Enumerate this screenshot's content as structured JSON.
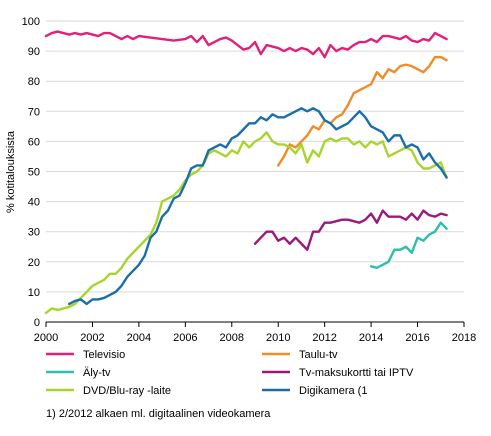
{
  "chart_data": {
    "type": "line",
    "title": "",
    "xlabel": "",
    "ylabel": "% kotitalouksista",
    "xlim": [
      2000,
      2018
    ],
    "ylim": [
      0,
      100
    ],
    "x_ticks": [
      "2000",
      "2002",
      "2004",
      "2006",
      "2008",
      "2010",
      "2012",
      "2014",
      "2016",
      "2018"
    ],
    "y_ticks": [
      "0",
      "10",
      "20",
      "30",
      "40",
      "50",
      "60",
      "70",
      "80",
      "90",
      "100"
    ],
    "grid": "horizontal",
    "legend_position": "bottom",
    "footnote": "1) 2/2012 alkaen ml. digitaalinen videokamera",
    "series": [
      {
        "name": "Televisio",
        "color": "#e0207a",
        "points": [
          [
            2000.0,
            95
          ],
          [
            2000.25,
            96
          ],
          [
            2000.5,
            96.5
          ],
          [
            2000.75,
            96
          ],
          [
            2001.0,
            95.5
          ],
          [
            2001.25,
            96
          ],
          [
            2001.5,
            95.5
          ],
          [
            2001.75,
            96
          ],
          [
            2002.0,
            95.5
          ],
          [
            2002.25,
            95
          ],
          [
            2002.5,
            96
          ],
          [
            2002.75,
            96
          ],
          [
            2003.0,
            95
          ],
          [
            2003.25,
            94
          ],
          [
            2003.5,
            95
          ],
          [
            2003.75,
            94
          ],
          [
            2004.0,
            95
          ],
          [
            2004.5,
            94.5
          ],
          [
            2005.0,
            94
          ],
          [
            2005.5,
            93.5
          ],
          [
            2006.0,
            94
          ],
          [
            2006.25,
            95
          ],
          [
            2006.5,
            93
          ],
          [
            2006.75,
            95
          ],
          [
            2007.0,
            92
          ],
          [
            2007.25,
            93
          ],
          [
            2007.5,
            94
          ],
          [
            2007.75,
            94.5
          ],
          [
            2008.0,
            93.5
          ],
          [
            2008.25,
            92
          ],
          [
            2008.5,
            90.5
          ],
          [
            2008.75,
            91
          ],
          [
            2009.0,
            93
          ],
          [
            2009.25,
            89
          ],
          [
            2009.5,
            92
          ],
          [
            2009.75,
            91.5
          ],
          [
            2010.0,
            91
          ],
          [
            2010.25,
            90
          ],
          [
            2010.5,
            91
          ],
          [
            2010.75,
            90
          ],
          [
            2011.0,
            91
          ],
          [
            2011.25,
            90.5
          ],
          [
            2011.5,
            89
          ],
          [
            2011.75,
            91
          ],
          [
            2012.0,
            88
          ],
          [
            2012.25,
            92
          ],
          [
            2012.5,
            90
          ],
          [
            2012.75,
            91
          ],
          [
            2013.0,
            90.5
          ],
          [
            2013.25,
            92
          ],
          [
            2013.5,
            93
          ],
          [
            2013.75,
            93
          ],
          [
            2014.0,
            94
          ],
          [
            2014.25,
            93
          ],
          [
            2014.5,
            95
          ],
          [
            2014.75,
            95
          ],
          [
            2015.0,
            94.5
          ],
          [
            2015.25,
            94
          ],
          [
            2015.5,
            95
          ],
          [
            2015.75,
            93.5
          ],
          [
            2016.0,
            93
          ],
          [
            2016.25,
            94
          ],
          [
            2016.5,
            93.5
          ],
          [
            2016.75,
            96
          ],
          [
            2017.0,
            95
          ],
          [
            2017.25,
            94
          ]
        ]
      },
      {
        "name": "Taulu-tv",
        "color": "#f08c28",
        "points": [
          [
            2010.0,
            52
          ],
          [
            2010.25,
            55
          ],
          [
            2010.5,
            59
          ],
          [
            2010.75,
            58
          ],
          [
            2011.0,
            60
          ],
          [
            2011.25,
            62
          ],
          [
            2011.5,
            65
          ],
          [
            2011.75,
            64
          ],
          [
            2012.0,
            67
          ],
          [
            2012.25,
            66
          ],
          [
            2012.5,
            68
          ],
          [
            2012.75,
            69
          ],
          [
            2013.0,
            72
          ],
          [
            2013.25,
            76
          ],
          [
            2013.5,
            77
          ],
          [
            2013.75,
            78
          ],
          [
            2014.0,
            79
          ],
          [
            2014.25,
            83
          ],
          [
            2014.5,
            81
          ],
          [
            2014.75,
            84
          ],
          [
            2015.0,
            83
          ],
          [
            2015.25,
            85
          ],
          [
            2015.5,
            85.5
          ],
          [
            2015.75,
            85
          ],
          [
            2016.0,
            84
          ],
          [
            2016.25,
            83
          ],
          [
            2016.5,
            85
          ],
          [
            2016.75,
            88
          ],
          [
            2017.0,
            88
          ],
          [
            2017.25,
            87
          ]
        ]
      },
      {
        "name": "Äly-tv",
        "color": "#2cbfad",
        "points": [
          [
            2014.0,
            18.5
          ],
          [
            2014.25,
            18
          ],
          [
            2014.5,
            19
          ],
          [
            2014.75,
            20
          ],
          [
            2015.0,
            24
          ],
          [
            2015.25,
            24
          ],
          [
            2015.5,
            25
          ],
          [
            2015.75,
            23
          ],
          [
            2016.0,
            28
          ],
          [
            2016.25,
            27
          ],
          [
            2016.5,
            29
          ],
          [
            2016.75,
            30
          ],
          [
            2017.0,
            33
          ],
          [
            2017.25,
            31
          ]
        ]
      },
      {
        "name": "Tv-maksukortti tai IPTV",
        "color": "#9a1a7a",
        "points": [
          [
            2009.0,
            26
          ],
          [
            2009.25,
            28
          ],
          [
            2009.5,
            30
          ],
          [
            2009.75,
            30
          ],
          [
            2010.0,
            27
          ],
          [
            2010.25,
            28
          ],
          [
            2010.5,
            26
          ],
          [
            2010.75,
            28
          ],
          [
            2011.0,
            26
          ],
          [
            2011.25,
            24
          ],
          [
            2011.5,
            30
          ],
          [
            2011.75,
            30
          ],
          [
            2012.0,
            33
          ],
          [
            2012.25,
            33
          ],
          [
            2012.5,
            33.5
          ],
          [
            2012.75,
            34
          ],
          [
            2013.0,
            34
          ],
          [
            2013.25,
            33.5
          ],
          [
            2013.5,
            33
          ],
          [
            2013.75,
            34
          ],
          [
            2014.0,
            36
          ],
          [
            2014.25,
            33
          ],
          [
            2014.5,
            37
          ],
          [
            2014.75,
            35
          ],
          [
            2015.0,
            35
          ],
          [
            2015.25,
            35
          ],
          [
            2015.5,
            34
          ],
          [
            2015.75,
            36
          ],
          [
            2016.0,
            34
          ],
          [
            2016.25,
            37
          ],
          [
            2016.5,
            35.5
          ],
          [
            2016.75,
            35
          ],
          [
            2017.0,
            36
          ],
          [
            2017.25,
            35.5
          ]
        ]
      },
      {
        "name": "DVD/Blu-ray -laite",
        "color": "#a8d42c",
        "points": [
          [
            2000.0,
            3
          ],
          [
            2000.25,
            4.5
          ],
          [
            2000.5,
            4
          ],
          [
            2000.75,
            4.5
          ],
          [
            2001.0,
            5
          ],
          [
            2001.25,
            6
          ],
          [
            2001.5,
            8
          ],
          [
            2001.75,
            10
          ],
          [
            2002.0,
            12
          ],
          [
            2002.25,
            13
          ],
          [
            2002.5,
            14
          ],
          [
            2002.75,
            16
          ],
          [
            2003.0,
            16
          ],
          [
            2003.25,
            18
          ],
          [
            2003.5,
            21
          ],
          [
            2003.75,
            23
          ],
          [
            2004.0,
            25
          ],
          [
            2004.25,
            27
          ],
          [
            2004.5,
            29
          ],
          [
            2004.75,
            33
          ],
          [
            2005.0,
            40
          ],
          [
            2005.25,
            41
          ],
          [
            2005.5,
            42
          ],
          [
            2005.75,
            44
          ],
          [
            2006.0,
            47
          ],
          [
            2006.25,
            49
          ],
          [
            2006.5,
            50
          ],
          [
            2006.75,
            52
          ],
          [
            2007.0,
            56
          ],
          [
            2007.25,
            57
          ],
          [
            2007.5,
            56
          ],
          [
            2007.75,
            55
          ],
          [
            2008.0,
            57
          ],
          [
            2008.25,
            56
          ],
          [
            2008.5,
            60
          ],
          [
            2008.75,
            58
          ],
          [
            2009.0,
            60
          ],
          [
            2009.25,
            61
          ],
          [
            2009.5,
            63
          ],
          [
            2009.75,
            60
          ],
          [
            2010.0,
            59
          ],
          [
            2010.25,
            59
          ],
          [
            2010.5,
            58
          ],
          [
            2010.75,
            56
          ],
          [
            2011.0,
            59
          ],
          [
            2011.25,
            53
          ],
          [
            2011.5,
            57
          ],
          [
            2011.75,
            55
          ],
          [
            2012.0,
            60
          ],
          [
            2012.25,
            61
          ],
          [
            2012.5,
            60
          ],
          [
            2012.75,
            61
          ],
          [
            2013.0,
            61
          ],
          [
            2013.25,
            59
          ],
          [
            2013.5,
            60
          ],
          [
            2013.75,
            58
          ],
          [
            2014.0,
            60
          ],
          [
            2014.25,
            59
          ],
          [
            2014.5,
            60
          ],
          [
            2014.75,
            55
          ],
          [
            2015.0,
            56
          ],
          [
            2015.25,
            57
          ],
          [
            2015.5,
            58
          ],
          [
            2015.75,
            57
          ],
          [
            2016.0,
            53
          ],
          [
            2016.25,
            51
          ],
          [
            2016.5,
            51
          ],
          [
            2016.75,
            52
          ],
          [
            2017.0,
            53
          ],
          [
            2017.25,
            48
          ]
        ]
      },
      {
        "name": "Digikamera (1",
        "color": "#1a6fa8",
        "points": [
          [
            2001.0,
            6
          ],
          [
            2001.25,
            7
          ],
          [
            2001.5,
            7.5
          ],
          [
            2001.75,
            6
          ],
          [
            2002.0,
            7.5
          ],
          [
            2002.25,
            7.5
          ],
          [
            2002.5,
            8
          ],
          [
            2002.75,
            9
          ],
          [
            2003.0,
            10
          ],
          [
            2003.25,
            12
          ],
          [
            2003.5,
            15
          ],
          [
            2003.75,
            17
          ],
          [
            2004.0,
            19
          ],
          [
            2004.25,
            22
          ],
          [
            2004.5,
            28
          ],
          [
            2004.75,
            30
          ],
          [
            2005.0,
            35
          ],
          [
            2005.25,
            37
          ],
          [
            2005.5,
            41
          ],
          [
            2005.75,
            42
          ],
          [
            2006.0,
            46
          ],
          [
            2006.25,
            51
          ],
          [
            2006.5,
            52
          ],
          [
            2006.75,
            52
          ],
          [
            2007.0,
            57
          ],
          [
            2007.25,
            58
          ],
          [
            2007.5,
            59
          ],
          [
            2007.75,
            58
          ],
          [
            2008.0,
            61
          ],
          [
            2008.25,
            62
          ],
          [
            2008.5,
            64
          ],
          [
            2008.75,
            66
          ],
          [
            2009.0,
            66
          ],
          [
            2009.25,
            68
          ],
          [
            2009.5,
            67
          ],
          [
            2009.75,
            69
          ],
          [
            2010.0,
            68
          ],
          [
            2010.25,
            68
          ],
          [
            2010.5,
            69
          ],
          [
            2010.75,
            70
          ],
          [
            2011.0,
            71
          ],
          [
            2011.25,
            70
          ],
          [
            2011.5,
            71
          ],
          [
            2011.75,
            70
          ],
          [
            2012.0,
            67
          ],
          [
            2012.25,
            66
          ],
          [
            2012.5,
            64
          ],
          [
            2012.75,
            65
          ],
          [
            2013.0,
            66
          ],
          [
            2013.25,
            68
          ],
          [
            2013.5,
            70
          ],
          [
            2013.75,
            68
          ],
          [
            2014.0,
            65
          ],
          [
            2014.25,
            64
          ],
          [
            2014.5,
            63
          ],
          [
            2014.75,
            60
          ],
          [
            2015.0,
            62
          ],
          [
            2015.25,
            62
          ],
          [
            2015.5,
            58
          ],
          [
            2015.75,
            59
          ],
          [
            2016.0,
            58
          ],
          [
            2016.25,
            54
          ],
          [
            2016.5,
            56
          ],
          [
            2016.75,
            53
          ],
          [
            2017.0,
            51
          ],
          [
            2017.25,
            48
          ]
        ]
      }
    ]
  }
}
